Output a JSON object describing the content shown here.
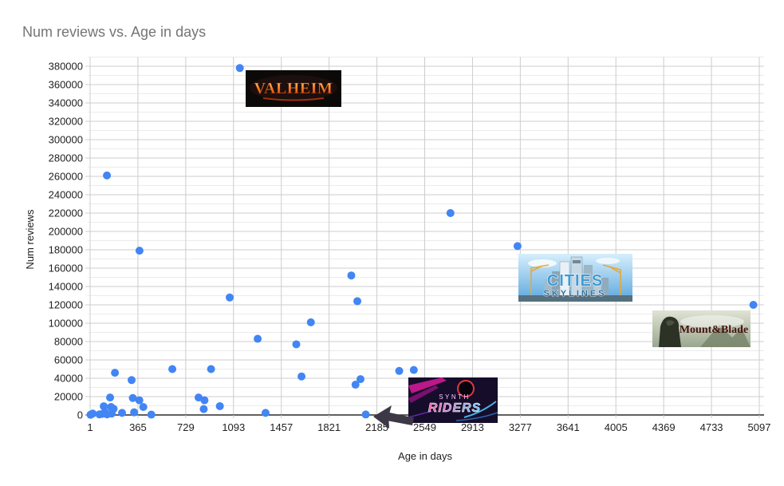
{
  "title": "Num reviews vs. Age in days",
  "colors": {
    "dot": "#4285f4",
    "title_text": "#757575",
    "tick_text": "#222222",
    "grid_major": "#cccccc",
    "grid_minor": "#ebebeb",
    "baseline": "#2b2b2b",
    "arrow": "#3d3846"
  },
  "chart_data": {
    "type": "scatter",
    "title": "Num reviews vs. Age in days",
    "xlabel": "Age in days",
    "ylabel": "Num reviews",
    "x_ticks": [
      1,
      365,
      729,
      1093,
      1457,
      1821,
      2185,
      2549,
      2913,
      3277,
      3641,
      4005,
      4369,
      4733,
      5097
    ],
    "y_ticks": [
      0,
      20000,
      40000,
      60000,
      80000,
      100000,
      120000,
      140000,
      160000,
      180000,
      200000,
      220000,
      240000,
      260000,
      280000,
      300000,
      320000,
      340000,
      360000,
      380000
    ],
    "y_minor_step": 10000,
    "xlim": [
      1,
      5097
    ],
    "ylim": [
      0,
      390000
    ],
    "grid": "major+minor",
    "legend_position": "none",
    "points": [
      [
        4,
        300
      ],
      [
        21,
        1500
      ],
      [
        72,
        600
      ],
      [
        95,
        1200
      ],
      [
        105,
        9500
      ],
      [
        115,
        2900
      ],
      [
        130,
        700
      ],
      [
        129,
        261000
      ],
      [
        153,
        19000
      ],
      [
        160,
        8700
      ],
      [
        165,
        1500
      ],
      [
        180,
        6700
      ],
      [
        190,
        46000
      ],
      [
        244,
        2300
      ],
      [
        317,
        38000
      ],
      [
        326,
        18500
      ],
      [
        336,
        2900
      ],
      [
        376,
        16000
      ],
      [
        377,
        179000
      ],
      [
        406,
        8700
      ],
      [
        467,
        400
      ],
      [
        627,
        50000
      ],
      [
        827,
        19000
      ],
      [
        866,
        6400
      ],
      [
        872,
        16000
      ],
      [
        922,
        50000
      ],
      [
        989,
        9600
      ],
      [
        1064,
        128000
      ],
      [
        1141,
        378000
      ],
      [
        1277,
        83000
      ],
      [
        1337,
        2300
      ],
      [
        1571,
        77000
      ],
      [
        1611,
        42000
      ],
      [
        1682,
        101000
      ],
      [
        1990,
        152000
      ],
      [
        2022,
        33000
      ],
      [
        2036,
        124000
      ],
      [
        2060,
        39000
      ],
      [
        2100,
        500
      ],
      [
        2355,
        48000
      ],
      [
        2466,
        49000
      ],
      [
        2745,
        220000
      ],
      [
        3256,
        184000
      ],
      [
        5052,
        120000
      ]
    ],
    "annotations": [
      {
        "name": "valheim-logo",
        "label": "VALHEIM",
        "near_point": [
          1141,
          378000
        ]
      },
      {
        "name": "cities-skylines-logo",
        "label": "CITIES SKYLINES",
        "near_point": [
          3256,
          184000
        ]
      },
      {
        "name": "mount-and-blade-logo",
        "label": "Mount&Blade",
        "near_point": [
          5052,
          120000
        ]
      },
      {
        "name": "synth-riders-logo",
        "label": "SYNTH RIDERS",
        "near_point": [
          2100,
          500
        ]
      },
      {
        "name": "left-arrow",
        "points_at": [
          2100,
          500
        ]
      }
    ]
  },
  "logos": {
    "valheim": {
      "text": "VALHEIM"
    },
    "cities": {
      "line1": "CITIES",
      "line2": "SKYLINES"
    },
    "mount": {
      "text": "Mount&Blade"
    },
    "synth": {
      "line1": "SYNTH",
      "line2": "RIDERS"
    }
  }
}
